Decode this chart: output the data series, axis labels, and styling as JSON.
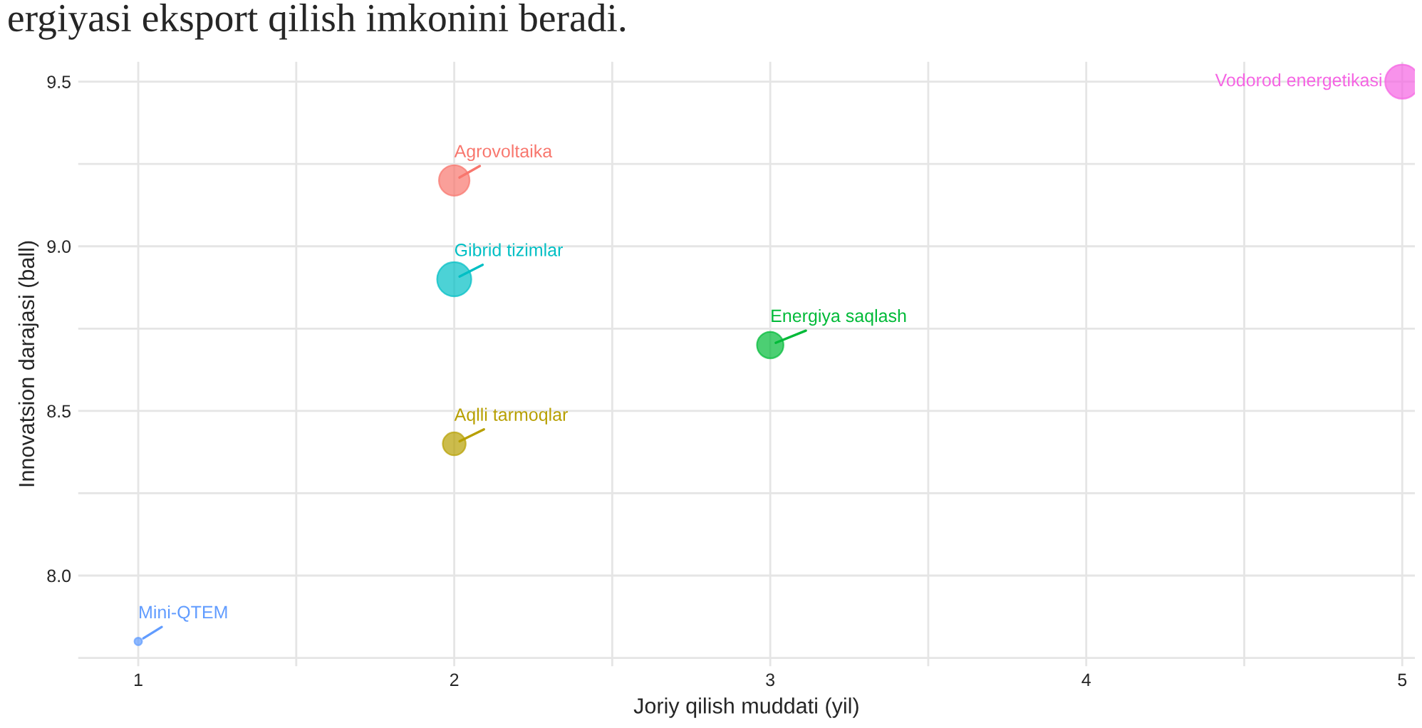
{
  "chart_data": {
    "type": "bubble",
    "xlabel": "Joriy qilish muddati (yil)",
    "ylabel": "Innovatsion darajasi (ball)",
    "annotations": [
      "ergiyasi eksport qilish imkonini beradi."
    ],
    "series": [
      {
        "name": "Agrovoltaika",
        "color": "#f8766d",
        "x": [
          2
        ],
        "values": [
          9.2
        ],
        "sizes": [
          0.8
        ]
      },
      {
        "name": "Aqlli tarmoqlar",
        "color": "#b79f00",
        "x": [
          2
        ],
        "values": [
          8.4
        ],
        "sizes": [
          0.45
        ]
      },
      {
        "name": "Energiya saqlash",
        "color": "#00ba38",
        "x": [
          3
        ],
        "values": [
          8.7
        ],
        "sizes": [
          0.6
        ]
      },
      {
        "name": "Gibrid tizimlar",
        "color": "#00bfc4",
        "x": [
          2
        ],
        "values": [
          8.9
        ],
        "sizes": [
          1
        ]
      },
      {
        "name": "Mini-QTEM",
        "color": "#619cff",
        "x": [
          1
        ],
        "values": [
          7.8
        ],
        "sizes": [
          0.05
        ]
      },
      {
        "name": "Vodorod energetikasi",
        "color": "#f564e3",
        "x": [
          5
        ],
        "values": [
          9.5
        ],
        "sizes": [
          1
        ]
      }
    ],
    "xlim": [
      0.81,
      5.04
    ],
    "ylim": [
      7.725,
      9.56
    ],
    "xticks": [
      1,
      {
        "value": 1.5,
        "label": null
      },
      2,
      {
        "value": 2.5,
        "label": null
      },
      3,
      {
        "value": 3.5,
        "label": null
      },
      4,
      {
        "value": 4.5,
        "label": null
      },
      5
    ],
    "yticks": [
      {
        "value": 7.75,
        "label": null
      },
      {
        "value": 8,
        "label": "8.0"
      },
      {
        "value": 8.25,
        "label": null
      },
      8.5,
      {
        "value": 8.75,
        "label": null
      },
      {
        "value": 9,
        "label": "9.0"
      },
      {
        "value": 9.25,
        "label": null
      },
      9.5
    ],
    "grid": true,
    "legend": false
  }
}
